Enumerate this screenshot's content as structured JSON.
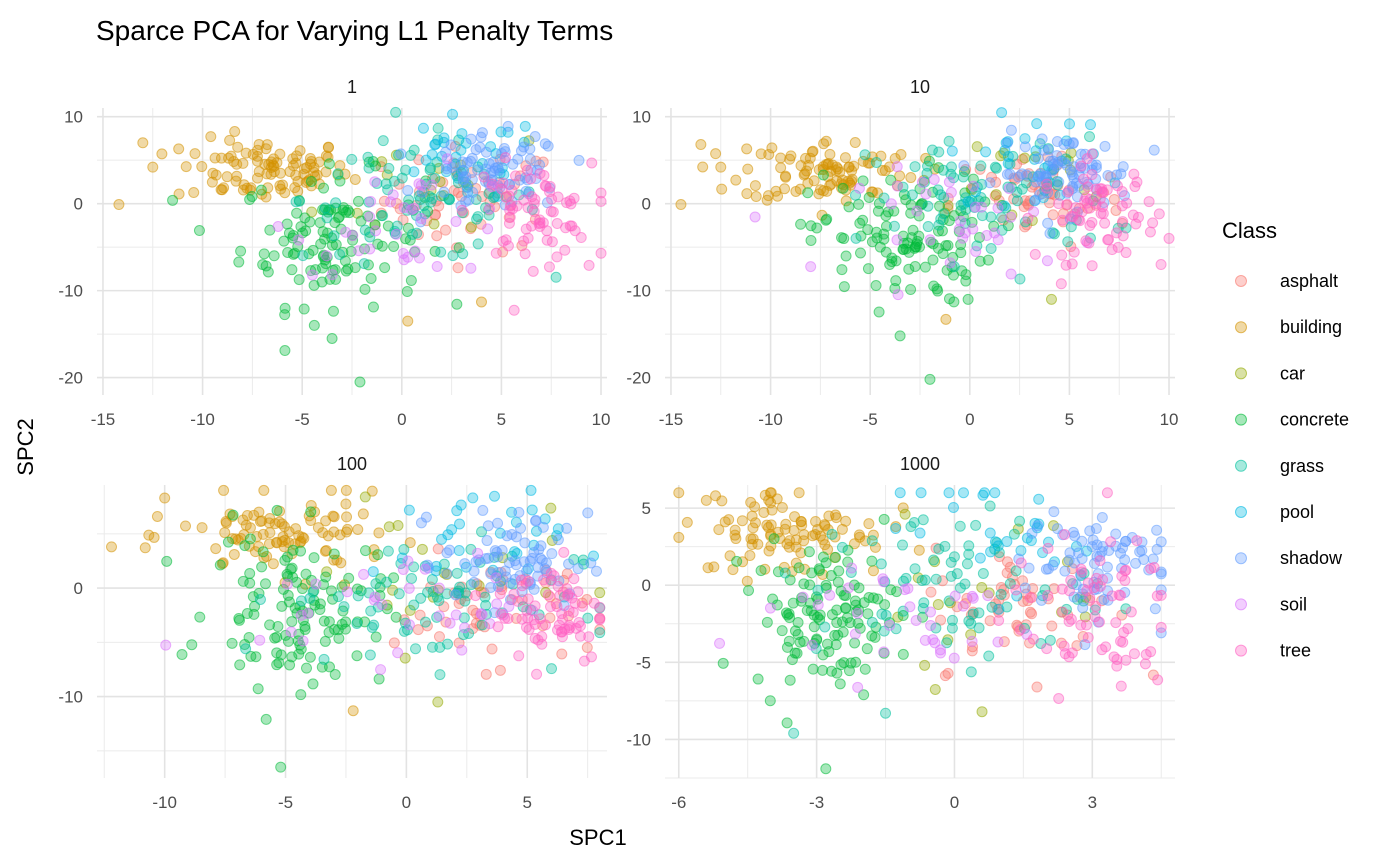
{
  "chart_data": {
    "type": "scatter",
    "title": "Sparce PCA for Varying L1 Penalty Terms",
    "xlabel": "SPC1",
    "ylabel": "SPC2",
    "grid": true,
    "legend_position": "right",
    "legend": {
      "title": "Class",
      "entries": [
        {
          "name": "asphalt",
          "color": "#F8766D"
        },
        {
          "name": "building",
          "color": "#D39200"
        },
        {
          "name": "car",
          "color": "#93AA00"
        },
        {
          "name": "concrete",
          "color": "#00BA38"
        },
        {
          "name": "grass",
          "color": "#00C19F"
        },
        {
          "name": "pool",
          "color": "#00B9E3"
        },
        {
          "name": "shadow",
          "color": "#619CFF"
        },
        {
          "name": "soil",
          "color": "#DB72FB"
        },
        {
          "name": "tree",
          "color": "#FF61C3"
        }
      ]
    },
    "facets": [
      {
        "label": "1",
        "xlim": [
          -15.3,
          10.3
        ],
        "ylim": [
          -22,
          11
        ],
        "xticks": [
          -15,
          -10,
          -5,
          0,
          5,
          10
        ],
        "xtick_labels": [
          "-15",
          "-10",
          "-5",
          "0",
          "5",
          "10"
        ],
        "yticks": [
          10,
          0,
          -10,
          -20
        ],
        "ytick_labels": [
          "10",
          "0",
          "-10",
          "-20"
        ],
        "clusters": {
          "asphalt": {
            "cx": 3.5,
            "cy": 0.5,
            "sx": 2.2,
            "sy": 3.0,
            "n": 55
          },
          "building": {
            "cx": -7.0,
            "cy": 3.8,
            "sx": 2.2,
            "sy": 1.8,
            "n": 95
          },
          "car": {
            "cx": 2.0,
            "cy": 2.0,
            "sx": 3.0,
            "sy": 3.5,
            "n": 18
          },
          "concrete": {
            "cx": -3.5,
            "cy": -4.0,
            "sx": 2.3,
            "sy": 3.8,
            "n": 120
          },
          "grass": {
            "cx": 1.0,
            "cy": 0.5,
            "sx": 3.0,
            "sy": 3.5,
            "n": 80
          },
          "pool": {
            "cx": 3.0,
            "cy": 5.0,
            "sx": 2.0,
            "sy": 2.5,
            "n": 30
          },
          "shadow": {
            "cx": 4.8,
            "cy": 3.5,
            "sx": 1.7,
            "sy": 2.2,
            "n": 75
          },
          "soil": {
            "cx": 0.5,
            "cy": -2.0,
            "sx": 3.0,
            "sy": 3.0,
            "n": 35
          },
          "tree": {
            "cx": 6.5,
            "cy": -1.0,
            "sx": 1.5,
            "sy": 2.8,
            "n": 70
          }
        },
        "extra_points": [
          {
            "class": "building",
            "x": -14.2,
            "y": -0.1
          },
          {
            "class": "building",
            "x": -13.0,
            "y": 7.0
          },
          {
            "class": "building",
            "x": -12.5,
            "y": 4.2
          },
          {
            "class": "building",
            "x": -11.2,
            "y": 6.3
          },
          {
            "class": "concrete",
            "x": -2.1,
            "y": -20.5
          },
          {
            "class": "concrete",
            "x": -3.5,
            "y": -15.5
          },
          {
            "class": "building",
            "x": 0.3,
            "y": -13.5
          },
          {
            "class": "tree",
            "x": 9.4,
            "y": -7.1
          },
          {
            "class": "building",
            "x": 4.0,
            "y": -11.3
          }
        ]
      },
      {
        "label": "10",
        "xlim": [
          -15.3,
          10.3
        ],
        "ylim": [
          -22,
          11
        ],
        "xticks": [
          -15,
          -10,
          -5,
          0,
          5,
          10
        ],
        "xtick_labels": [
          "-15",
          "-10",
          "-5",
          "0",
          "5",
          "10"
        ],
        "yticks": [
          10,
          0,
          -10,
          -20
        ],
        "ytick_labels": [
          "10",
          "0",
          "-10",
          "-20"
        ],
        "clusters": {
          "asphalt": {
            "cx": 3.5,
            "cy": 0.5,
            "sx": 2.2,
            "sy": 3.0,
            "n": 55
          },
          "building": {
            "cx": -7.0,
            "cy": 3.8,
            "sx": 2.2,
            "sy": 1.8,
            "n": 95
          },
          "car": {
            "cx": 2.0,
            "cy": 2.0,
            "sx": 3.0,
            "sy": 3.5,
            "n": 18
          },
          "concrete": {
            "cx": -3.5,
            "cy": -4.0,
            "sx": 2.3,
            "sy": 3.8,
            "n": 120
          },
          "grass": {
            "cx": 1.0,
            "cy": 0.5,
            "sx": 3.0,
            "sy": 3.5,
            "n": 80
          },
          "pool": {
            "cx": 3.0,
            "cy": 5.0,
            "sx": 2.0,
            "sy": 2.5,
            "n": 30
          },
          "shadow": {
            "cx": 4.8,
            "cy": 3.5,
            "sx": 1.7,
            "sy": 2.2,
            "n": 75
          },
          "soil": {
            "cx": 0.5,
            "cy": -2.0,
            "sx": 3.0,
            "sy": 3.0,
            "n": 35
          },
          "tree": {
            "cx": 6.5,
            "cy": -1.0,
            "sx": 1.5,
            "sy": 2.8,
            "n": 70
          }
        },
        "extra_points": [
          {
            "class": "building",
            "x": -14.5,
            "y": -0.1
          },
          {
            "class": "building",
            "x": -13.5,
            "y": 6.8
          },
          {
            "class": "building",
            "x": -12.5,
            "y": 4.2
          },
          {
            "class": "building",
            "x": -11.2,
            "y": 6.3
          },
          {
            "class": "concrete",
            "x": -2.0,
            "y": -20.2
          },
          {
            "class": "concrete",
            "x": -3.5,
            "y": -15.2
          },
          {
            "class": "building",
            "x": -1.2,
            "y": -13.3
          },
          {
            "class": "tree",
            "x": 9.6,
            "y": -7.0
          },
          {
            "class": "car",
            "x": 4.1,
            "y": -11.0
          }
        ]
      },
      {
        "label": "100",
        "xlim": [
          -12.8,
          8.3
        ],
        "ylim": [
          -17.5,
          9.5
        ],
        "xticks": [
          -10,
          -5,
          0,
          5
        ],
        "xtick_labels": [
          "-10",
          "-5",
          "0",
          "5"
        ],
        "yticks": [
          0,
          -10
        ],
        "ytick_labels": [
          "0",
          "-10"
        ],
        "clusters": {
          "asphalt": {
            "cx": 3.5,
            "cy": -2.0,
            "sx": 2.0,
            "sy": 2.5,
            "n": 55
          },
          "building": {
            "cx": -5.0,
            "cy": 4.8,
            "sx": 2.2,
            "sy": 1.8,
            "n": 95
          },
          "car": {
            "cx": 1.0,
            "cy": 1.0,
            "sx": 3.0,
            "sy": 3.5,
            "n": 18
          },
          "concrete": {
            "cx": -4.5,
            "cy": -2.0,
            "sx": 1.8,
            "sy": 3.5,
            "n": 120
          },
          "grass": {
            "cx": 1.0,
            "cy": -1.0,
            "sx": 3.0,
            "sy": 3.0,
            "n": 80
          },
          "pool": {
            "cx": 2.5,
            "cy": 4.0,
            "sx": 2.0,
            "sy": 2.5,
            "n": 30
          },
          "shadow": {
            "cx": 4.5,
            "cy": 2.5,
            "sx": 1.5,
            "sy": 2.2,
            "n": 75
          },
          "soil": {
            "cx": 0.0,
            "cy": -1.5,
            "sx": 3.0,
            "sy": 2.5,
            "n": 35
          },
          "tree": {
            "cx": 6.0,
            "cy": -2.0,
            "sx": 1.2,
            "sy": 2.5,
            "n": 70
          }
        },
        "extra_points": [
          {
            "class": "building",
            "x": -12.2,
            "y": 3.8
          },
          {
            "class": "building",
            "x": -10.0,
            "y": 8.3
          },
          {
            "class": "building",
            "x": -10.3,
            "y": 6.6
          },
          {
            "class": "concrete",
            "x": -5.2,
            "y": -16.5
          },
          {
            "class": "concrete",
            "x": -5.8,
            "y": -12.1
          },
          {
            "class": "building",
            "x": -2.2,
            "y": -11.3
          },
          {
            "class": "car",
            "x": 1.3,
            "y": -10.5
          },
          {
            "class": "car",
            "x": -1.7,
            "y": 8.4
          }
        ]
      },
      {
        "label": "1000",
        "xlim": [
          -6.3,
          4.8
        ],
        "ylim": [
          -12.5,
          6.5
        ],
        "xticks": [
          -6,
          -3,
          0,
          3
        ],
        "xtick_labels": [
          "-6",
          "-3",
          "0",
          "3"
        ],
        "yticks": [
          5,
          0,
          -5,
          -10
        ],
        "ytick_labels": [
          "5",
          "0",
          "-5",
          "-10"
        ],
        "clusters": {
          "asphalt": {
            "cx": 1.5,
            "cy": -1.5,
            "sx": 1.0,
            "sy": 2.0,
            "n": 55
          },
          "building": {
            "cx": -3.5,
            "cy": 3.5,
            "sx": 1.0,
            "sy": 1.5,
            "n": 95
          },
          "car": {
            "cx": 0.5,
            "cy": 0.0,
            "sx": 1.5,
            "sy": 2.5,
            "n": 18
          },
          "concrete": {
            "cx": -2.8,
            "cy": -2.0,
            "sx": 0.8,
            "sy": 2.3,
            "n": 120
          },
          "grass": {
            "cx": 0.0,
            "cy": 0.0,
            "sx": 1.5,
            "sy": 2.5,
            "n": 80
          },
          "pool": {
            "cx": 0.8,
            "cy": 3.5,
            "sx": 1.0,
            "sy": 2.0,
            "n": 30
          },
          "shadow": {
            "cx": 3.0,
            "cy": 1.5,
            "sx": 0.8,
            "sy": 1.8,
            "n": 75
          },
          "soil": {
            "cx": -1.5,
            "cy": -2.0,
            "sx": 1.8,
            "sy": 2.0,
            "n": 35
          },
          "tree": {
            "cx": 3.0,
            "cy": -2.0,
            "sx": 0.9,
            "sy": 2.5,
            "n": 70
          }
        },
        "extra_points": [
          {
            "class": "building",
            "x": -6.0,
            "y": 3.1
          },
          {
            "class": "building",
            "x": -5.4,
            "y": 5.5
          },
          {
            "class": "building",
            "x": -5.2,
            "y": 5.8
          },
          {
            "class": "concrete",
            "x": -2.8,
            "y": -11.9
          },
          {
            "class": "grass",
            "x": -3.5,
            "y": -9.6
          },
          {
            "class": "car",
            "x": 0.6,
            "y": -8.2
          },
          {
            "class": "grass",
            "x": -1.5,
            "y": -8.3
          }
        ]
      }
    ]
  }
}
